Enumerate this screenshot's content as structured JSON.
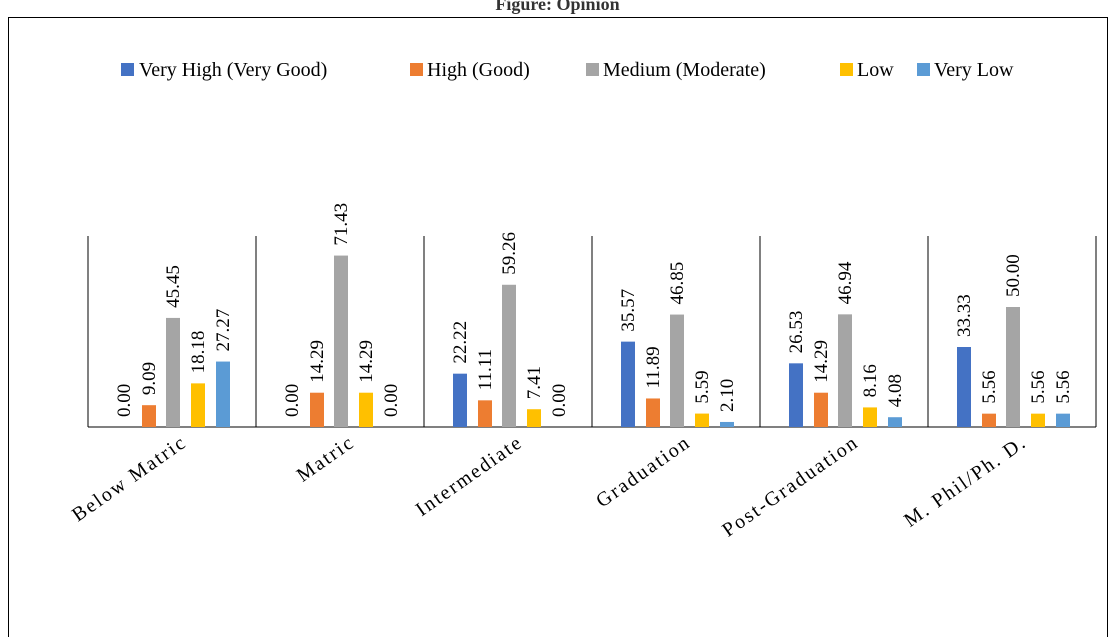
{
  "figure": {
    "title": "Figure: Opinion"
  },
  "colors": {
    "very_high": "#4472C4",
    "high": "#ED7D31",
    "medium": "#A5A5A5",
    "low": "#FFC000",
    "very_low": "#5B9BD5"
  },
  "chart_data": {
    "type": "bar",
    "categories": [
      "Below Matric",
      "Matric",
      "Intermediate",
      "Graduation",
      "Post-Graduation",
      "M. Phil/Ph. D."
    ],
    "series": [
      {
        "name": "Very High (Very Good)",
        "color": "#4472C4",
        "values": [
          0.0,
          0.0,
          22.22,
          35.57,
          26.53,
          33.33
        ]
      },
      {
        "name": "High (Good)",
        "color": "#ED7D31",
        "values": [
          9.09,
          14.29,
          11.11,
          11.89,
          14.29,
          5.56
        ]
      },
      {
        "name": "Medium (Moderate)",
        "color": "#A5A5A5",
        "values": [
          45.45,
          71.43,
          59.26,
          46.85,
          46.94,
          50.0
        ]
      },
      {
        "name": "Low",
        "color": "#FFC000",
        "values": [
          18.18,
          14.29,
          7.41,
          5.59,
          8.16,
          5.56
        ]
      },
      {
        "name": "Very Low",
        "color": "#5B9BD5",
        "values": [
          27.27,
          0.0,
          0.0,
          2.1,
          4.08,
          5.56
        ]
      }
    ],
    "value_labels": [
      [
        "0.00",
        "0.00",
        "22.22",
        "35.57",
        "26.53",
        "33.33"
      ],
      [
        "9.09",
        "14.29",
        "11.11",
        "11.89",
        "14.29",
        "5.56"
      ],
      [
        "45.45",
        "71.43",
        "59.26",
        "46.85",
        "46.94",
        "50.00"
      ],
      [
        "18.18",
        "14.29",
        "7.41",
        "5.59",
        "8.16",
        "5.56"
      ],
      [
        "27.27",
        "0.00",
        "0.00",
        "2.10",
        "4.08",
        "5.56"
      ]
    ],
    "ylim": [
      0,
      100
    ],
    "legend_position": "top",
    "grid": false,
    "xlabel": "",
    "ylabel": ""
  }
}
